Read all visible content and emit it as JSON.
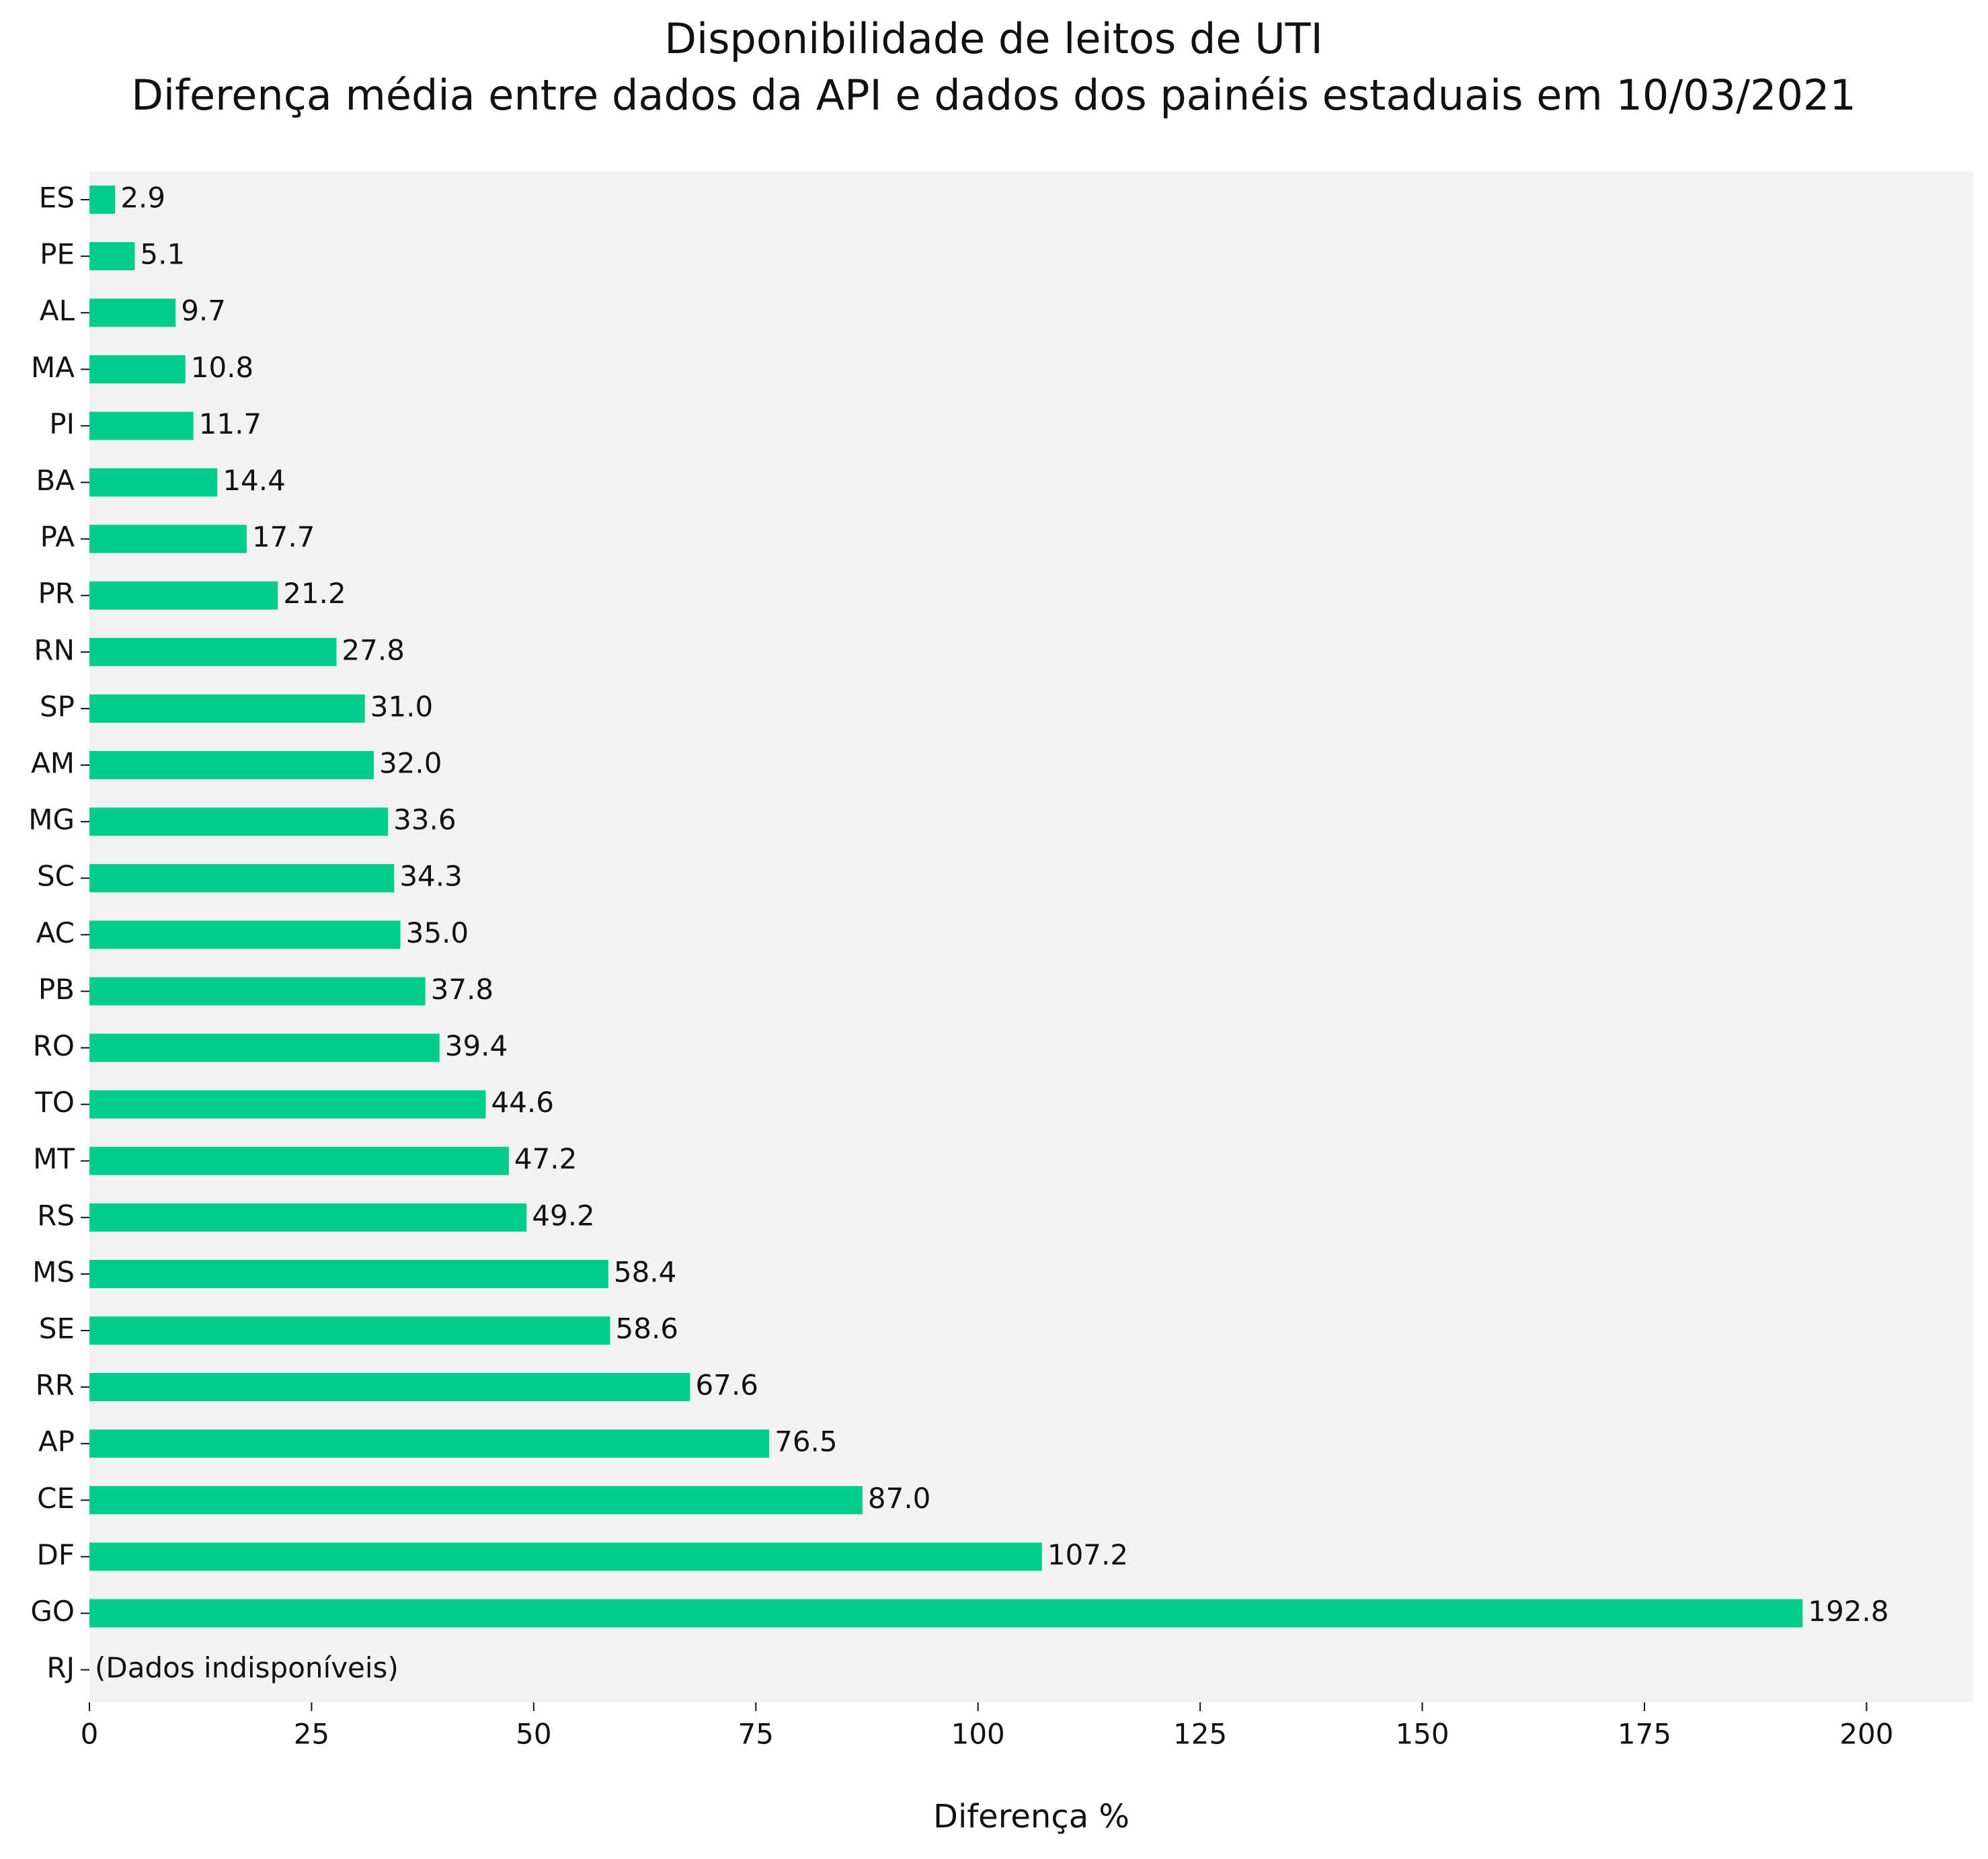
{
  "chart_data": {
    "type": "bar",
    "orientation": "horizontal",
    "title": [
      "Disponibilidade de leitos de UTI",
      "Diferença média entre dados da API e dados dos painéis estaduais em 10/03/2021"
    ],
    "xlabel": "Diferença %",
    "ylabel": "",
    "xlim": [
      0,
      212
    ],
    "xticks": [
      0,
      25,
      50,
      75,
      100,
      125,
      150,
      175,
      200
    ],
    "categories": [
      "ES",
      "PE",
      "AL",
      "MA",
      "PI",
      "BA",
      "PA",
      "PR",
      "RN",
      "SP",
      "AM",
      "MG",
      "SC",
      "AC",
      "PB",
      "RO",
      "TO",
      "MT",
      "RS",
      "MS",
      "SE",
      "RR",
      "AP",
      "CE",
      "DF",
      "GO",
      "RJ"
    ],
    "values": [
      2.9,
      5.1,
      9.7,
      10.8,
      11.7,
      14.4,
      17.7,
      21.2,
      27.8,
      31.0,
      32.0,
      33.6,
      34.3,
      35.0,
      37.8,
      39.4,
      44.6,
      47.2,
      49.2,
      58.4,
      58.6,
      67.6,
      76.5,
      87.0,
      107.2,
      192.8,
      null
    ],
    "value_labels": [
      "2.9",
      "5.1",
      "9.7",
      "10.8",
      "11.7",
      "14.4",
      "17.7",
      "21.2",
      "27.8",
      "31.0",
      "32.0",
      "33.6",
      "34.3",
      "35.0",
      "37.8",
      "39.4",
      "44.6",
      "47.2",
      "49.2",
      "58.4",
      "58.6",
      "67.6",
      "76.5",
      "87.0",
      "107.2",
      "192.8",
      "(Dados indisponíveis)"
    ],
    "grid": false,
    "legend": "none",
    "colors": {
      "bar": "#00CC8C",
      "plot_background": "#F2F2F2",
      "text": "#111111"
    }
  }
}
